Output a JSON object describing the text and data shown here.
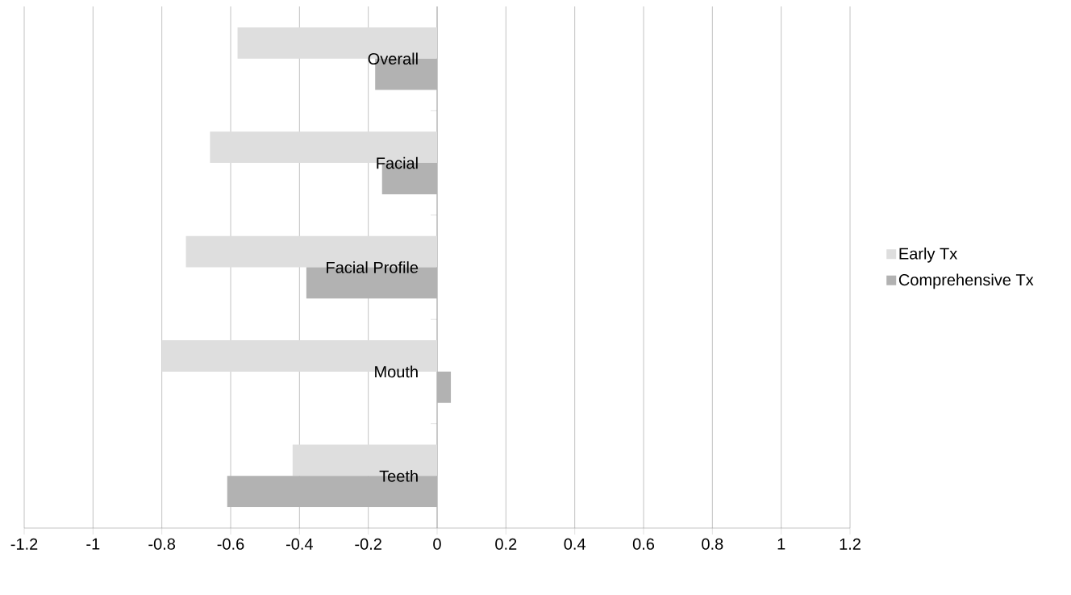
{
  "chart_data": {
    "type": "bar",
    "orientation": "horizontal",
    "categories": [
      "Overall",
      "Facial",
      "Facial Profile",
      "Mouth",
      "Teeth"
    ],
    "series": [
      {
        "name": "Early Tx",
        "color": "#dedede",
        "values": [
          -0.58,
          -0.66,
          -0.73,
          -0.8,
          -0.42
        ]
      },
      {
        "name": "Comprehensive Tx",
        "color": "#b2b2b2",
        "values": [
          -0.18,
          -0.16,
          -0.38,
          0.04,
          -0.61
        ]
      }
    ],
    "xlim": [
      -1.2,
      1.2
    ],
    "xticks": [
      -1.2,
      -1,
      -0.8,
      -0.6,
      -0.4,
      -0.2,
      0,
      0.2,
      0.4,
      0.6,
      0.8,
      1,
      1.2
    ],
    "grid": "x",
    "legend": "right"
  }
}
